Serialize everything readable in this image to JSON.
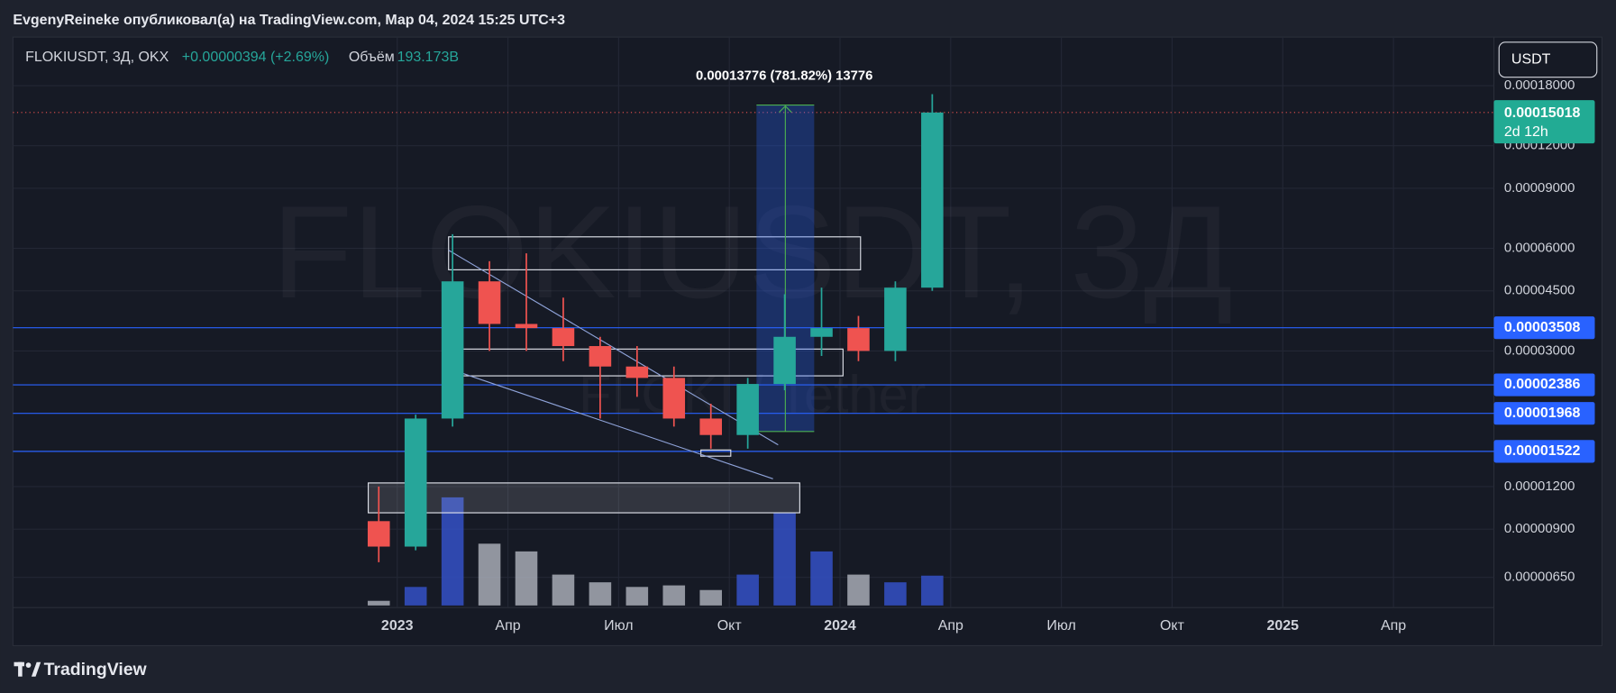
{
  "header": {
    "publisher": "EvgenyReineke опубликовал(а) на TradingView.com, Мар 04, 2024 15:25 UTC+3",
    "symbol": "FLOKIUSDT, 3Д, OKX",
    "change": "+0.00000394 (+2.69%)",
    "volume_title": "Объём",
    "volume_value": "193.173B",
    "currency": "USDT",
    "brand": "TradingView"
  },
  "chart_data": {
    "type": "candlestick",
    "watermark": "FLOKIUSDT, 3Д",
    "watermark_sub": "FLOKI / Tether",
    "measure_label": "0.00013776 (781.82%) 13776",
    "log_scale": true,
    "grid": true,
    "up_color": "#26a69a",
    "down_color": "#ef5350",
    "volume_up_color": "#3451c7",
    "volume_down_color": "#a7abb5",
    "level_color": "#2962ff",
    "last_price_color": "#22ab94",
    "x": [
      "2022-12",
      "2023-01",
      "2023-02",
      "2023-03",
      "2023-04",
      "2023-05",
      "2023-06",
      "2023-07",
      "2023-08",
      "2023-09",
      "2023-10",
      "2023-11",
      "2023-12",
      "2024-01",
      "2024-02",
      "2024-03"
    ],
    "open": [
      9.5e-06,
      8e-06,
      1.9e-05,
      4.8e-05,
      3.6e-05,
      3.5e-05,
      3.1e-05,
      2.7e-05,
      2.5e-05,
      1.9e-05,
      1.7e-05,
      2.4e-05,
      3.3e-05,
      3.5e-05,
      3e-05,
      4.6e-05
    ],
    "high": [
      1.2e-05,
      1.95e-05,
      6.6e-05,
      5.5e-05,
      5.8e-05,
      4.3e-05,
      3.3e-05,
      3.1e-05,
      2.7e-05,
      2.1e-05,
      2.5e-05,
      4.4e-05,
      4.6e-05,
      3.8e-05,
      4.8e-05,
      0.00017
    ],
    "low": [
      7.2e-06,
      7.8e-06,
      1.8e-05,
      3e-05,
      3e-05,
      2.8e-05,
      1.9e-05,
      2.2e-05,
      1.8e-05,
      1.55e-05,
      1.55e-05,
      2.3e-05,
      2.9e-05,
      2.8e-05,
      2.8e-05,
      4.5e-05
    ],
    "close": [
      8e-06,
      1.9e-05,
      4.8e-05,
      3.6e-05,
      3.5e-05,
      3.1e-05,
      2.7e-05,
      2.5e-05,
      1.9e-05,
      1.7e-05,
      2.4e-05,
      3.3e-05,
      3.5e-05,
      3e-05,
      4.6e-05,
      0.00015018
    ],
    "volume": [
      30,
      120,
      700,
      400,
      350,
      200,
      150,
      120,
      130,
      100,
      200,
      600,
      350,
      200,
      150,
      193.173
    ],
    "vlim": [
      0,
      900
    ],
    "xlim": [
      "2022-02",
      "2025-07"
    ],
    "xticks": [
      {
        "value": "2023-01",
        "label": "2023"
      },
      {
        "value": "2023-04",
        "label": "Апр"
      },
      {
        "value": "2023-07",
        "label": "Июл"
      },
      {
        "value": "2023-10",
        "label": "Окт"
      },
      {
        "value": "2024-01",
        "label": "2024"
      },
      {
        "value": "2024-04",
        "label": "Апр"
      },
      {
        "value": "2024-07",
        "label": "Июл"
      },
      {
        "value": "2024-10",
        "label": "Окт"
      },
      {
        "value": "2025-01",
        "label": "2025"
      },
      {
        "value": "2025-04",
        "label": "Апр"
      }
    ],
    "ylim": [
      5.3e-06,
      0.00025
    ],
    "yticks": [
      {
        "value": 0.00018,
        "label": "0.00018000"
      },
      {
        "value": 0.00012,
        "label": "0.00012000"
      },
      {
        "value": 9e-05,
        "label": "0.00009000"
      },
      {
        "value": 6e-05,
        "label": "0.00006000"
      },
      {
        "value": 4.5e-05,
        "label": "0.00004500"
      },
      {
        "value": 3e-05,
        "label": "0.00003000"
      },
      {
        "value": 1.2e-05,
        "label": "0.00001200"
      },
      {
        "value": 9e-06,
        "label": "0.00000900"
      },
      {
        "value": 6.5e-06,
        "label": "0.00000650"
      }
    ],
    "levels": [
      {
        "value": 3.508e-05,
        "label": "0.00003508"
      },
      {
        "value": 2.386e-05,
        "label": "0.00002386"
      },
      {
        "value": 1.968e-05,
        "label": "0.00001968"
      },
      {
        "value": 1.522e-05,
        "label": "0.00001522"
      }
    ],
    "last_price": {
      "value": 0.00015018,
      "label": "0.00015018",
      "countdown": "2d 12h"
    }
  }
}
